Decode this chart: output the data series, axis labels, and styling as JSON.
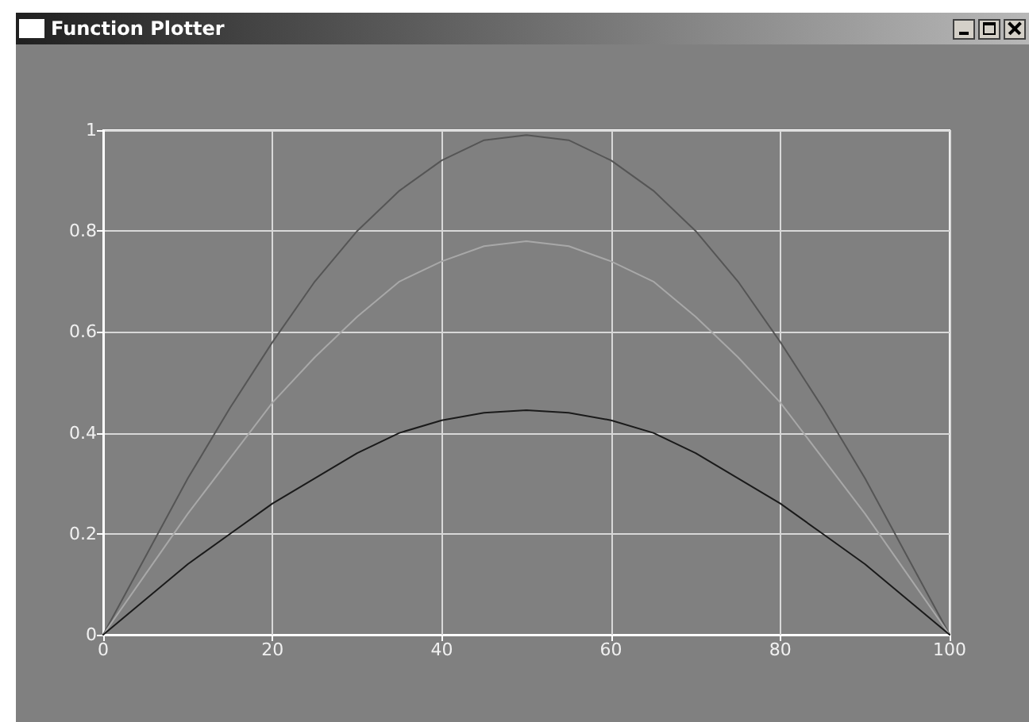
{
  "chart_data": {
    "type": "line",
    "title": "Function Plotter",
    "x": [
      0,
      5,
      10,
      15,
      20,
      25,
      30,
      35,
      40,
      45,
      50,
      55,
      60,
      65,
      70,
      75,
      80,
      85,
      90,
      95,
      100
    ],
    "series": [
      {
        "color": "#555555",
        "values": [
          0,
          0.155,
          0.31,
          0.45,
          0.58,
          0.7,
          0.8,
          0.88,
          0.94,
          0.98,
          0.99,
          0.98,
          0.94,
          0.88,
          0.8,
          0.7,
          0.58,
          0.45,
          0.31,
          0.155,
          0
        ]
      },
      {
        "color": "#a8a8a8",
        "values": [
          0,
          0.12,
          0.24,
          0.35,
          0.46,
          0.55,
          0.63,
          0.7,
          0.74,
          0.77,
          0.78,
          0.77,
          0.74,
          0.7,
          0.63,
          0.55,
          0.46,
          0.35,
          0.24,
          0.12,
          0
        ]
      },
      {
        "color": "#1a1a1a",
        "values": [
          0,
          0.07,
          0.14,
          0.2,
          0.26,
          0.31,
          0.36,
          0.4,
          0.425,
          0.44,
          0.445,
          0.44,
          0.425,
          0.4,
          0.36,
          0.31,
          0.26,
          0.2,
          0.14,
          0.07,
          0
        ]
      }
    ],
    "xlim": [
      0,
      100
    ],
    "xticks": [
      0,
      20,
      40,
      60,
      80,
      100
    ],
    "ylim": [
      0,
      1
    ],
    "yticks": [
      0,
      0.2,
      0.4,
      0.6,
      0.8,
      1
    ],
    "grid": true,
    "marker": "none",
    "line_style": "solid"
  }
}
